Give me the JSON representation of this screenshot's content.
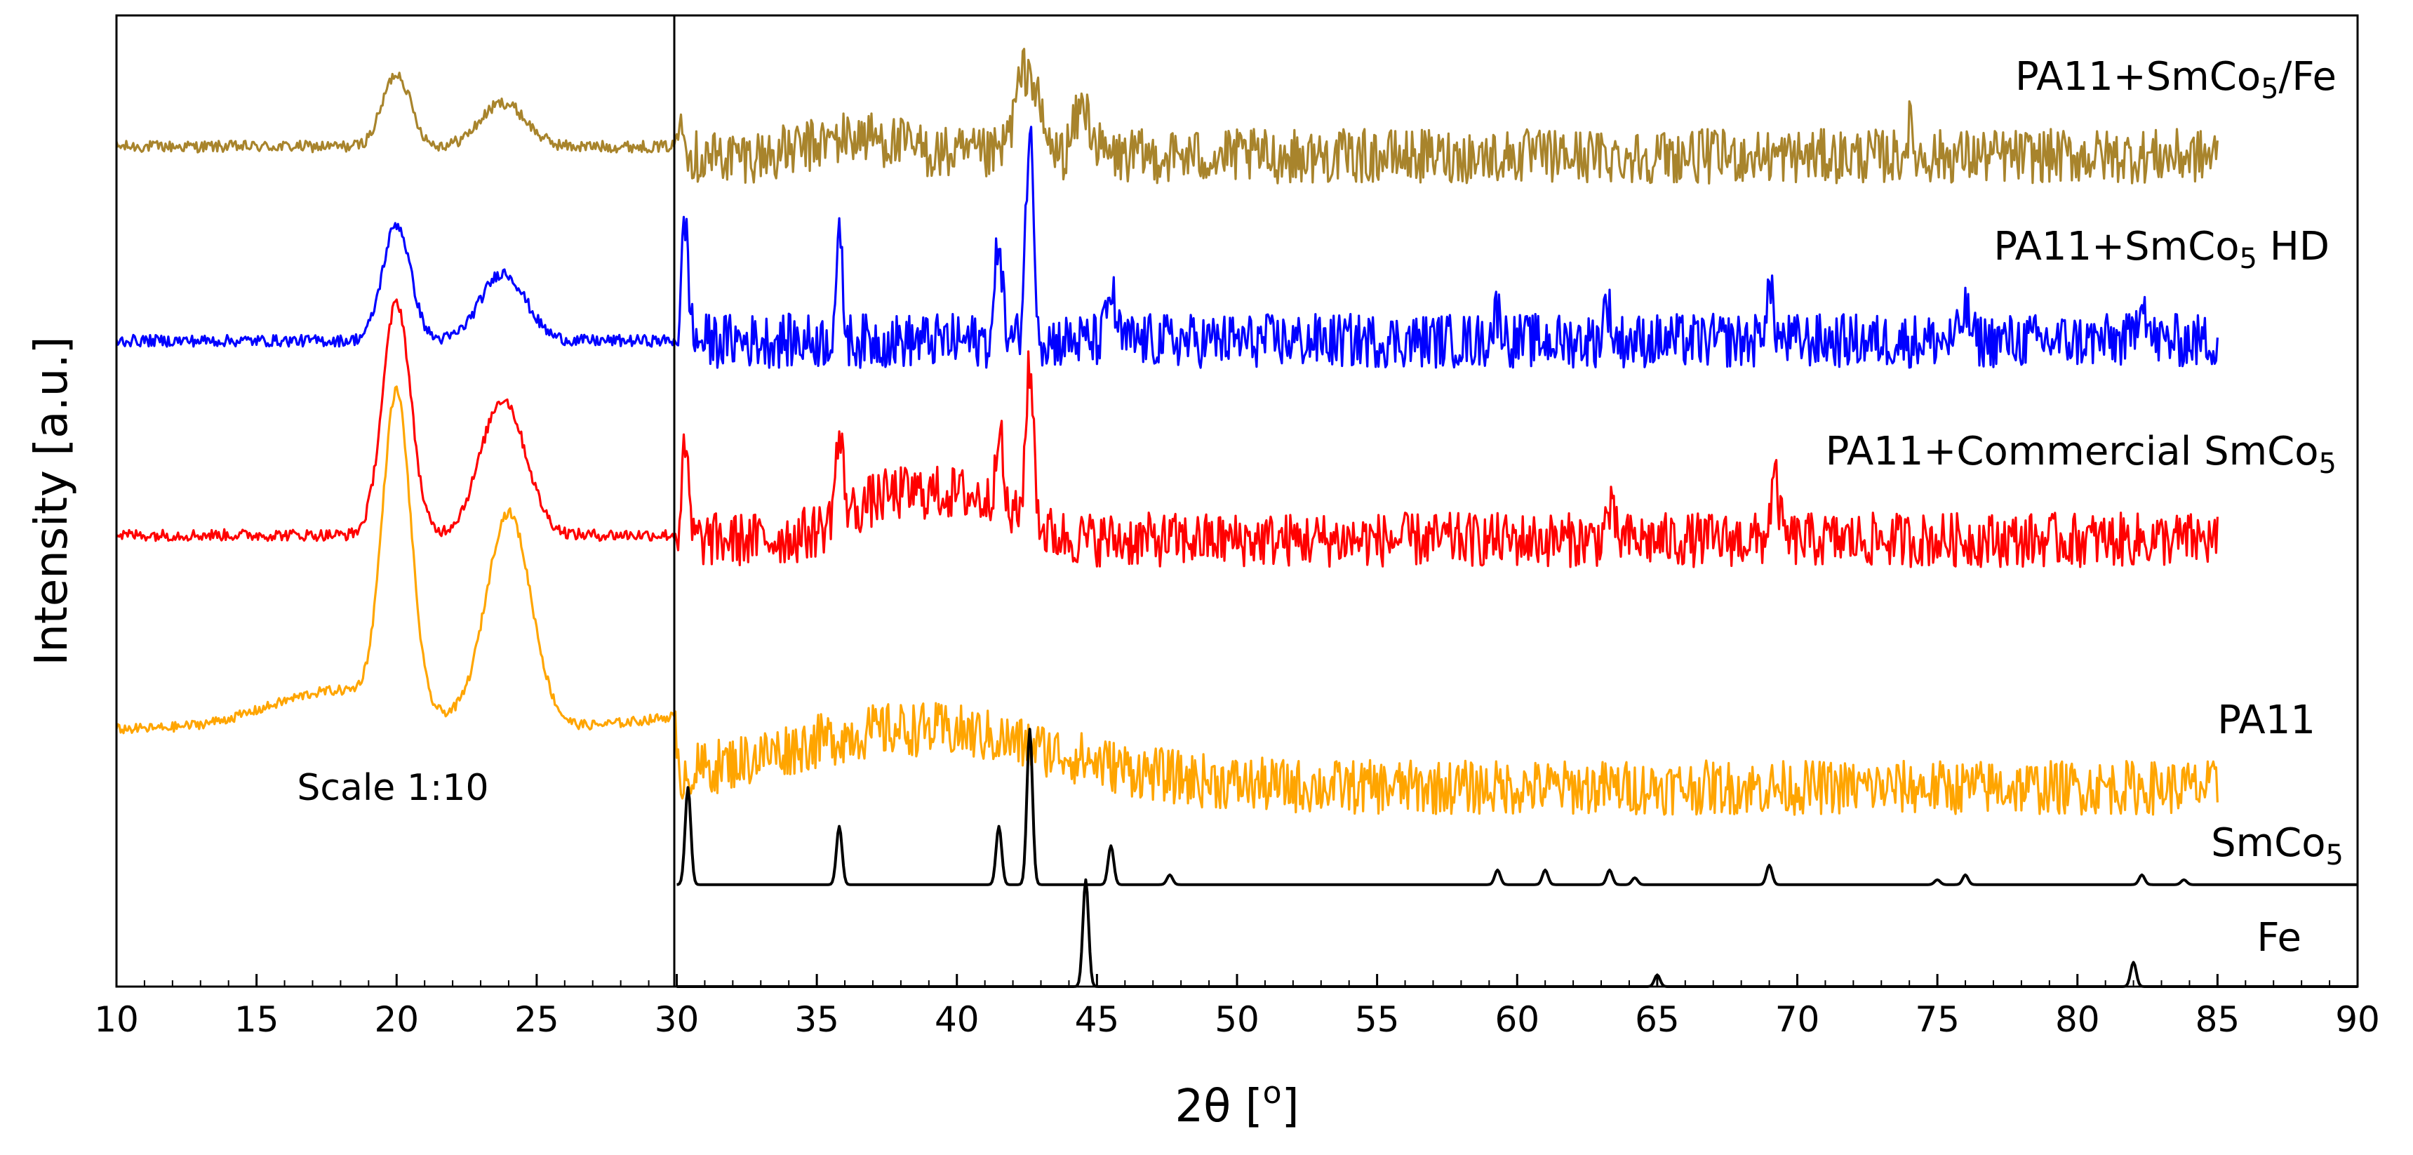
{
  "chart_data": {
    "type": "line",
    "xlabel": "2θ [°]",
    "xlabel_parts": {
      "main": "2θ [",
      "sup": "o",
      "end": "]"
    },
    "ylabel": "Intensity [a.u.]",
    "xlim": [
      10,
      90
    ],
    "x_ticks": [
      10,
      15,
      20,
      25,
      30,
      35,
      40,
      45,
      50,
      55,
      60,
      65,
      70,
      75,
      80,
      85,
      90
    ],
    "grid": false,
    "inset_annotation": "Scale 1:10",
    "inset_x_range": [
      10,
      30
    ],
    "series": [
      {
        "name": "PA11+SmCo5/Fe",
        "label_parts": {
          "main": "PA11+SmCo",
          "sub": "5",
          "end": "/Fe"
        },
        "color": "#a8842c",
        "kind": "noisy",
        "x_range": [
          10,
          85
        ],
        "base_left": 0.865,
        "base_right": 0.855,
        "noise_left": 0.006,
        "noise_right": 0.028,
        "peaks": [
          {
            "x": 20.0,
            "h": 0.075,
            "w": 0.5
          },
          {
            "x": 23.8,
            "h": 0.045,
            "w": 0.8
          },
          {
            "x": 30.2,
            "h": 0.05,
            "w": 0.12
          },
          {
            "x": 36.5,
            "h": 0.02,
            "w": 1.5
          },
          {
            "x": 42.5,
            "h": 0.09,
            "w": 0.4
          },
          {
            "x": 44.5,
            "h": 0.05,
            "w": 0.3
          },
          {
            "x": 74.0,
            "h": 0.03,
            "w": 0.1
          }
        ]
      },
      {
        "name": "PA11+SmCo5 HD",
        "label_parts": {
          "main": "PA11+SmCo",
          "sub": "5",
          "end": " HD"
        },
        "color": "#0000ff",
        "kind": "noisy",
        "x_range": [
          10,
          85
        ],
        "base_left": 0.665,
        "base_right": 0.665,
        "noise_left": 0.006,
        "noise_right": 0.028,
        "peaks": [
          {
            "x": 20.0,
            "h": 0.12,
            "w": 0.5
          },
          {
            "x": 23.8,
            "h": 0.07,
            "w": 0.8
          },
          {
            "x": 30.3,
            "h": 0.12,
            "w": 0.12
          },
          {
            "x": 35.8,
            "h": 0.1,
            "w": 0.12
          },
          {
            "x": 41.5,
            "h": 0.11,
            "w": 0.12
          },
          {
            "x": 42.6,
            "h": 0.21,
            "w": 0.15
          },
          {
            "x": 45.5,
            "h": 0.05,
            "w": 0.15
          },
          {
            "x": 59.3,
            "h": 0.03,
            "w": 0.15
          },
          {
            "x": 63.2,
            "h": 0.04,
            "w": 0.12
          },
          {
            "x": 69.0,
            "h": 0.05,
            "w": 0.15
          },
          {
            "x": 76.0,
            "h": 0.03,
            "w": 0.15
          },
          {
            "x": 82.3,
            "h": 0.05,
            "w": 0.15
          }
        ]
      },
      {
        "name": "PA11+Commercial SmCo5",
        "label_parts": {
          "main": "PA11+Commercial SmCo",
          "sub": "5",
          "end": ""
        },
        "color": "#ff0000",
        "kind": "noisy",
        "x_range": [
          10,
          85
        ],
        "base_left": 0.465,
        "base_right": 0.46,
        "noise_left": 0.006,
        "noise_right": 0.028,
        "peaks": [
          {
            "x": 20.0,
            "h": 0.24,
            "w": 0.5
          },
          {
            "x": 23.8,
            "h": 0.14,
            "w": 0.8
          },
          {
            "x": 30.3,
            "h": 0.09,
            "w": 0.12
          },
          {
            "x": 35.8,
            "h": 0.08,
            "w": 0.15
          },
          {
            "x": 37.5,
            "h": 0.04,
            "w": 1.5
          },
          {
            "x": 40.5,
            "h": 0.04,
            "w": 1.5
          },
          {
            "x": 41.5,
            "h": 0.09,
            "w": 0.12
          },
          {
            "x": 42.6,
            "h": 0.16,
            "w": 0.15
          },
          {
            "x": 63.3,
            "h": 0.03,
            "w": 0.15
          },
          {
            "x": 69.2,
            "h": 0.06,
            "w": 0.15
          }
        ]
      },
      {
        "name": "PA11",
        "label_parts": {
          "main": "PA11",
          "sub": "",
          "end": ""
        },
        "color": "#ffa500",
        "kind": "noisy",
        "x_range": [
          10,
          85
        ],
        "base_left": 0.265,
        "base_right": 0.205,
        "noise_left": 0.005,
        "noise_right": 0.028,
        "peaks": [
          {
            "x": 20.0,
            "h": 0.32,
            "w": 0.5
          },
          {
            "x": 24.0,
            "h": 0.22,
            "w": 0.8
          },
          {
            "x": 18.0,
            "h": 0.04,
            "w": 2.5
          },
          {
            "x": 38.5,
            "h": 0.06,
            "w": 5.0
          }
        ]
      },
      {
        "name": "SmCo5",
        "label_parts": {
          "main": "SmCo",
          "sub": "5",
          "end": ""
        },
        "color": "#000000",
        "kind": "reference",
        "x_range": [
          30,
          90
        ],
        "base": 0.105,
        "peaks": [
          {
            "x": 30.4,
            "h": 0.1,
            "w": 0.1
          },
          {
            "x": 35.8,
            "h": 0.06,
            "w": 0.1
          },
          {
            "x": 41.5,
            "h": 0.06,
            "w": 0.1
          },
          {
            "x": 42.6,
            "h": 0.16,
            "w": 0.1
          },
          {
            "x": 45.5,
            "h": 0.04,
            "w": 0.1
          },
          {
            "x": 47.6,
            "h": 0.01,
            "w": 0.1
          },
          {
            "x": 59.3,
            "h": 0.015,
            "w": 0.1
          },
          {
            "x": 61.0,
            "h": 0.015,
            "w": 0.1
          },
          {
            "x": 63.3,
            "h": 0.015,
            "w": 0.1
          },
          {
            "x": 64.2,
            "h": 0.007,
            "w": 0.1
          },
          {
            "x": 69.0,
            "h": 0.02,
            "w": 0.1
          },
          {
            "x": 75.0,
            "h": 0.005,
            "w": 0.1
          },
          {
            "x": 76.0,
            "h": 0.01,
            "w": 0.1
          },
          {
            "x": 82.3,
            "h": 0.01,
            "w": 0.1
          },
          {
            "x": 83.8,
            "h": 0.005,
            "w": 0.1
          }
        ]
      },
      {
        "name": "Fe",
        "label_parts": {
          "main": "Fe",
          "sub": "",
          "end": ""
        },
        "color": "#000000",
        "kind": "reference",
        "x_range": [
          30,
          90
        ],
        "base": 0.0,
        "peaks": [
          {
            "x": 44.6,
            "h": 0.11,
            "w": 0.1
          },
          {
            "x": 65.0,
            "h": 0.012,
            "w": 0.1
          },
          {
            "x": 82.0,
            "h": 0.025,
            "w": 0.1
          }
        ]
      }
    ]
  }
}
